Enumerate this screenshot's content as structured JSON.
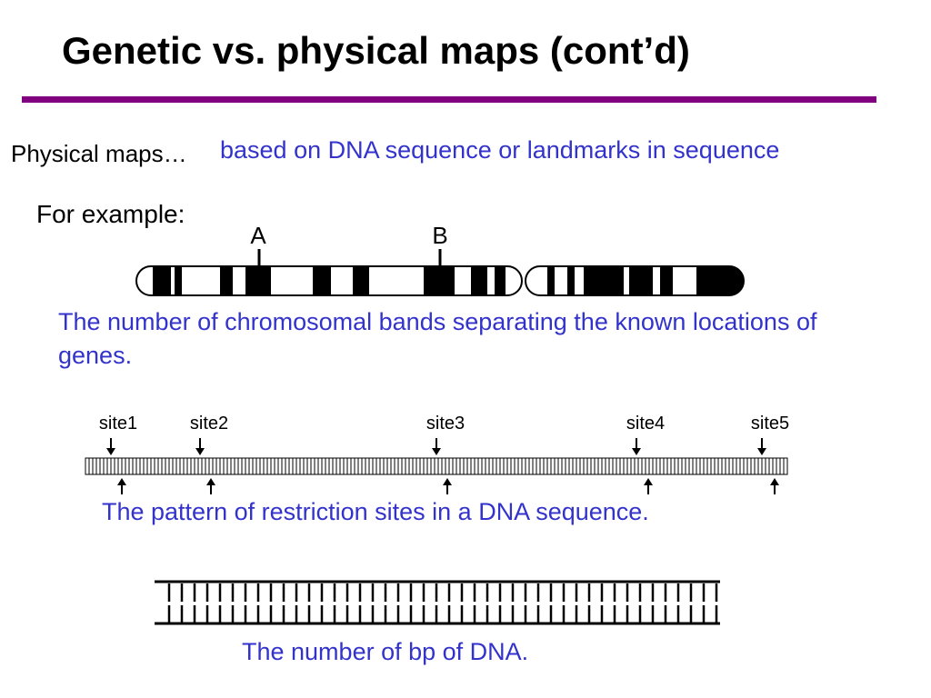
{
  "title": "Genetic vs. physical maps (cont’d)",
  "colors": {
    "rule": "#800080",
    "accent_text": "#3333cc",
    "ink": "#000000"
  },
  "physical_maps": {
    "label": "Physical maps…",
    "definition": "based on DNA sequence or landmarks in sequence"
  },
  "example_label": "For example:",
  "chromosome": {
    "markers": [
      "A",
      "B"
    ],
    "caption": "The number of chromosomal bands separating the known locations of genes."
  },
  "restriction": {
    "sites": [
      "site1",
      "site2",
      "site3",
      "site4",
      "site5"
    ],
    "caption": "The pattern of restriction sites in a DNA sequence."
  },
  "bp": {
    "caption": "The number of bp of DNA."
  }
}
